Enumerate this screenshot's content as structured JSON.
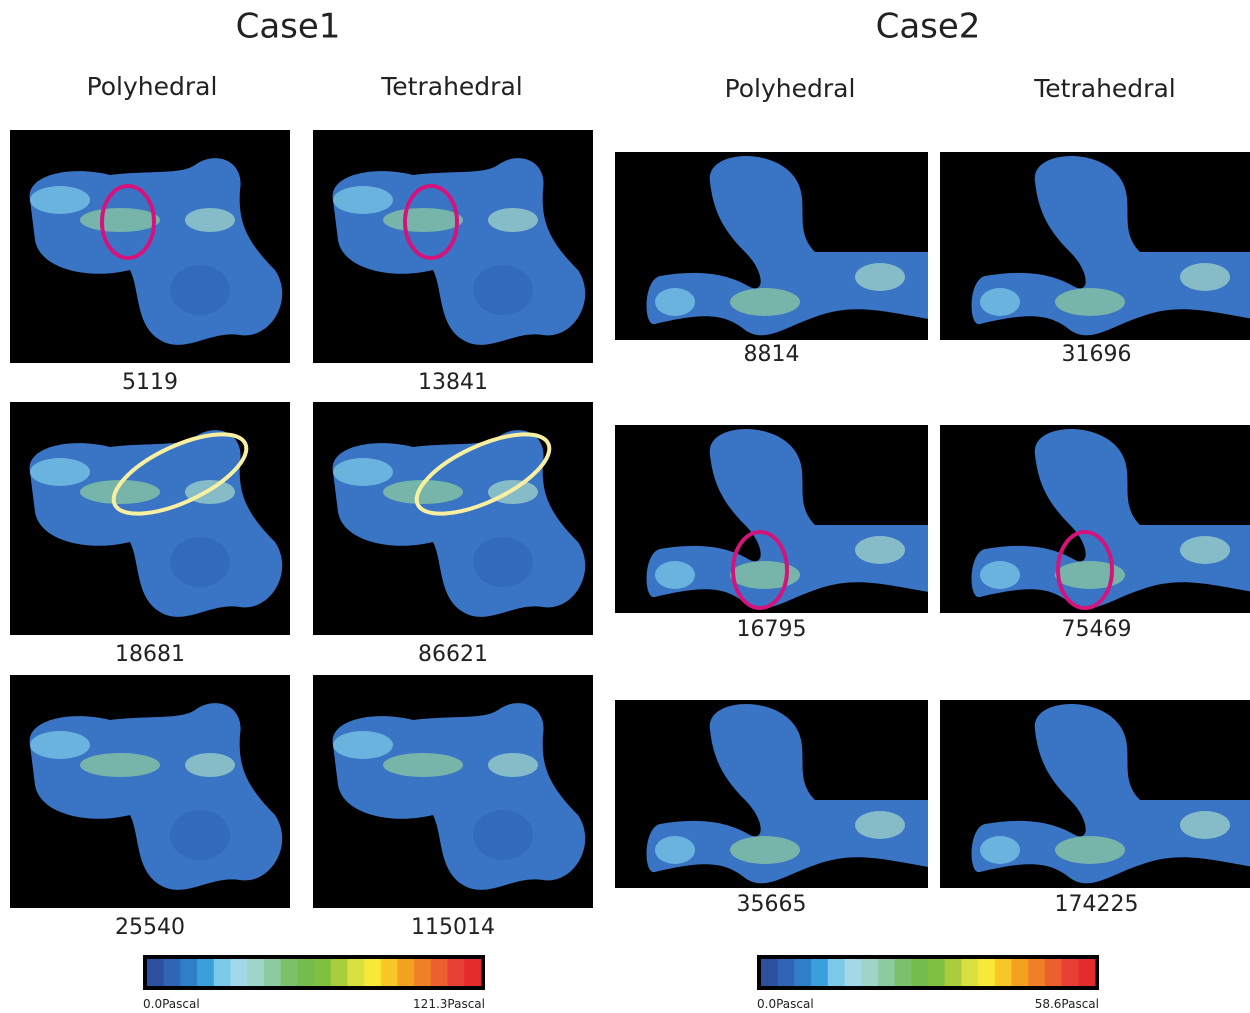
{
  "case1": {
    "title": "Case1",
    "columns": [
      "Polyhedral",
      "Tetrahedral"
    ],
    "rows": [
      [
        5119,
        13841
      ],
      [
        18681,
        86621
      ],
      [
        25540,
        115014
      ]
    ],
    "colorbar": {
      "min_label": "0.0Pascal",
      "max_label": "121.3Pascal"
    }
  },
  "case2": {
    "title": "Case2",
    "columns": [
      "Polyhedral",
      "Tetrahedral"
    ],
    "rows": [
      [
        8814,
        31696
      ],
      [
        16795,
        75469
      ],
      [
        35665,
        174225
      ]
    ],
    "colorbar": {
      "min_label": "0.0Pascal",
      "max_label": "58.6Pascal"
    }
  }
}
